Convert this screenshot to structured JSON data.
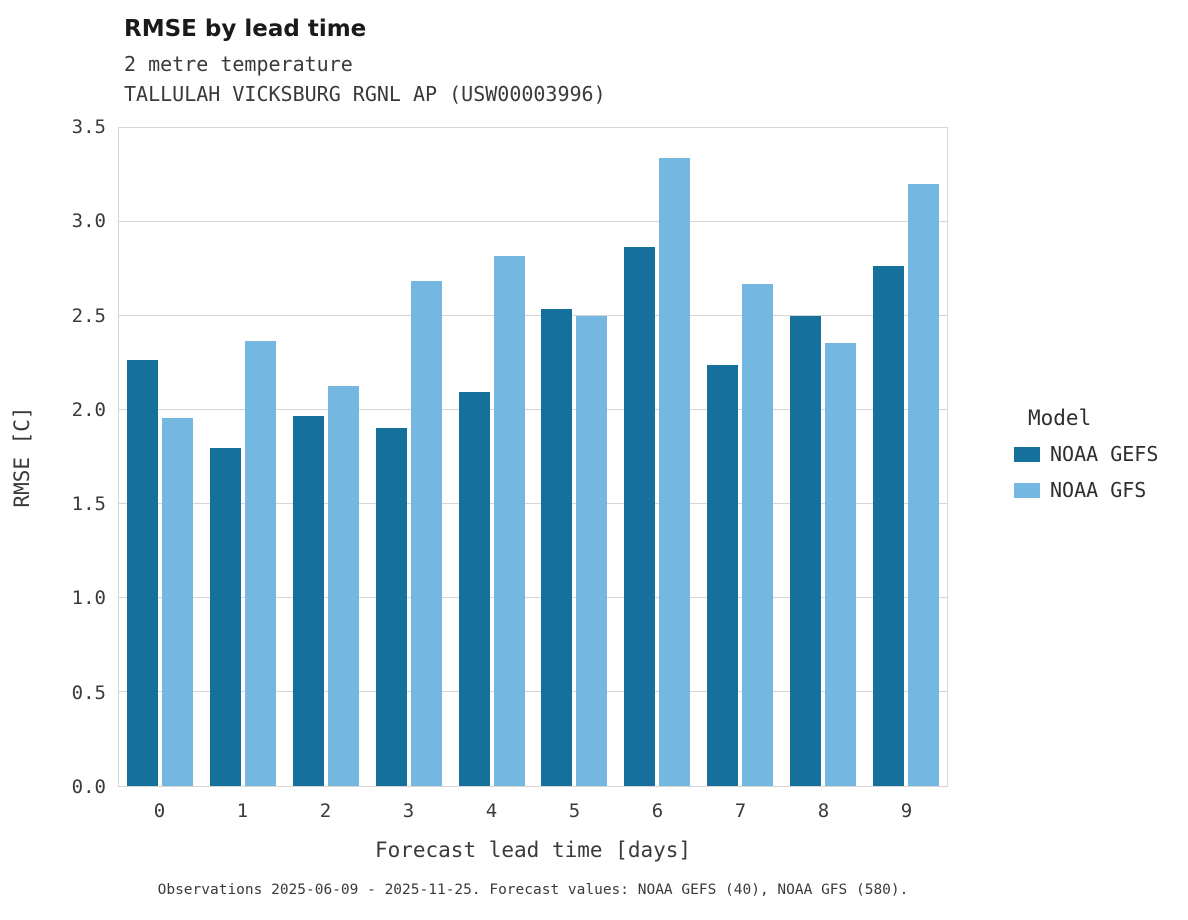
{
  "header": {
    "title": "RMSE by lead time",
    "subtitle1": "2 metre temperature",
    "subtitle2": "TALLULAH VICKSBURG RGNL AP (USW00003996)"
  },
  "footer": {
    "caption": "Observations 2025-06-09 - 2025-11-25. Forecast values: NOAA GEFS (40), NOAA GFS (580)."
  },
  "chart_data": {
    "type": "bar",
    "title": "RMSE by lead time",
    "subtitle": [
      "2 metre temperature",
      "TALLULAH VICKSBURG RGNL AP (USW00003996)"
    ],
    "xlabel": "Forecast lead time [days]",
    "ylabel": "RMSE [C]",
    "categories": [
      "0",
      "1",
      "2",
      "3",
      "4",
      "5",
      "6",
      "7",
      "8",
      "9"
    ],
    "series": [
      {
        "name": "NOAA GEFS",
        "color": "#15719c",
        "values": [
          2.26,
          1.79,
          1.96,
          1.9,
          2.09,
          2.53,
          2.86,
          2.23,
          2.49,
          2.76
        ]
      },
      {
        "name": "NOAA GFS",
        "color": "#74b7e0",
        "values": [
          1.95,
          2.36,
          2.12,
          2.68,
          2.81,
          2.49,
          3.33,
          2.66,
          2.35,
          3.19
        ]
      }
    ],
    "ylim": [
      0,
      3.5
    ],
    "yticks": [
      0.0,
      0.5,
      1.0,
      1.5,
      2.0,
      2.5,
      3.0,
      3.5
    ],
    "grid": true,
    "legend_title": "Model",
    "legend_position": "right"
  }
}
